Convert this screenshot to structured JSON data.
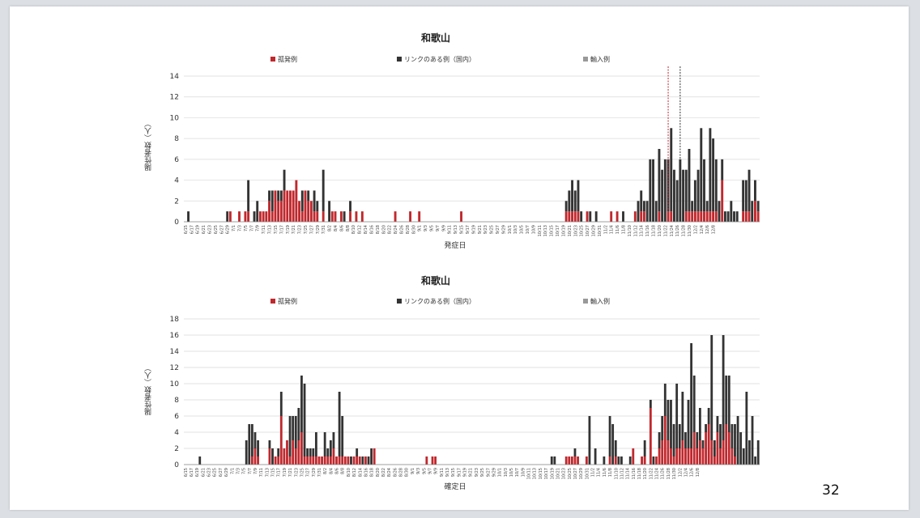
{
  "page_number": "32",
  "colors": {
    "sporadic": "#c0282d",
    "linked": "#333333",
    "imported": "#999999"
  },
  "chart_data": [
    {
      "type": "bar",
      "stacked": true,
      "title": "和歌山",
      "xlabel": "発症日",
      "ylabel": "陽性者数（人）",
      "ylim": [
        0,
        14
      ],
      "yticks": [
        0,
        2,
        4,
        6,
        8,
        10,
        12,
        14
      ],
      "grid": true,
      "legend_position": "top",
      "legend": [
        "孤発例",
        "リンクのある例（国内）",
        "輸入例"
      ],
      "x_start": "6/15",
      "x_end": "12/9",
      "x_tick_labels": [
        "6/15",
        "6/17",
        "6/19",
        "6/21",
        "6/23",
        "6/25",
        "6/27",
        "6/29",
        "7/1",
        "7/3",
        "7/5",
        "7/7",
        "7/9",
        "7/11",
        "7/13",
        "7/15",
        "7/17",
        "7/19",
        "7/21",
        "7/23",
        "7/25",
        "7/27",
        "7/29",
        "7/31",
        "8/2",
        "8/4",
        "8/6",
        "8/8",
        "8/10",
        "8/12",
        "8/14",
        "8/16",
        "8/18",
        "8/20",
        "8/22",
        "8/24",
        "8/26",
        "8/28",
        "8/30",
        "9/1",
        "9/3",
        "9/5",
        "9/7",
        "9/9",
        "9/11",
        "9/13",
        "9/15",
        "9/17",
        "9/19",
        "9/21",
        "9/23",
        "9/25",
        "9/27",
        "9/29",
        "10/1",
        "10/3",
        "10/5",
        "10/7",
        "10/9",
        "10/11",
        "10/13",
        "10/15",
        "10/17",
        "10/19",
        "10/21",
        "10/23",
        "10/25",
        "10/27",
        "10/29",
        "10/31",
        "11/2",
        "11/4",
        "11/6",
        "11/8",
        "11/10",
        "11/12",
        "11/14",
        "11/16",
        "11/18",
        "11/20",
        "11/22",
        "11/24",
        "11/26",
        "11/28",
        "11/30",
        "12/2",
        "12/4",
        "12/6",
        "12/8"
      ],
      "x_tick_step": 2,
      "reference_lines": [
        {
          "date": "11/23",
          "color": "#c0282d"
        },
        {
          "date": "11/27",
          "color": "#333333"
        }
      ],
      "series": [
        {
          "name": "孤発例",
          "values": [
            0,
            0,
            0,
            0,
            0,
            0,
            0,
            0,
            0,
            0,
            0,
            0,
            0,
            0,
            0,
            1,
            0,
            0,
            1,
            0,
            1,
            1,
            0,
            0,
            0,
            1,
            1,
            1,
            2,
            1,
            3,
            2,
            2,
            3,
            3,
            3,
            3,
            4,
            2,
            1,
            3,
            2,
            2,
            1,
            1,
            0,
            1,
            0,
            0,
            1,
            1,
            0,
            1,
            0,
            0,
            1,
            0,
            1,
            0,
            1,
            0,
            0,
            0,
            0,
            0,
            0,
            0,
            0,
            0,
            0,
            1,
            0,
            0,
            0,
            0,
            1,
            0,
            0,
            1,
            0,
            0,
            0,
            0,
            0,
            0,
            0,
            0,
            0,
            0,
            0,
            0,
            0,
            1,
            0,
            0,
            0,
            0,
            0,
            0,
            0,
            0,
            0,
            0,
            0,
            0,
            0,
            0,
            0,
            0,
            0,
            0,
            0,
            0,
            0,
            0,
            0,
            0,
            0,
            0,
            0,
            0,
            0,
            0,
            0,
            0,
            0,
            0,
            1,
            1,
            1,
            1,
            1,
            0,
            0,
            1,
            0,
            0,
            0,
            0,
            0,
            0,
            0,
            1,
            0,
            1,
            0,
            0,
            0,
            0,
            0,
            1,
            0,
            1,
            1,
            0,
            0,
            0,
            0,
            1,
            0,
            0,
            1,
            1,
            0,
            0,
            0,
            0,
            1,
            1,
            1,
            1,
            1,
            1,
            1,
            1,
            1,
            1,
            1,
            0,
            4,
            0,
            0,
            0,
            0,
            0,
            0,
            1,
            1,
            1,
            0,
            2,
            1
          ]
        },
        {
          "name": "リンクのある例（国内）",
          "values": [
            0,
            1,
            0,
            0,
            0,
            0,
            0,
            0,
            0,
            0,
            0,
            0,
            0,
            0,
            1,
            0,
            0,
            0,
            0,
            0,
            0,
            3,
            0,
            1,
            2,
            0,
            0,
            0,
            1,
            2,
            0,
            1,
            1,
            2,
            0,
            0,
            0,
            0,
            0,
            2,
            0,
            1,
            0,
            2,
            1,
            0,
            4,
            0,
            2,
            0,
            0,
            0,
            0,
            1,
            0,
            1,
            0,
            0,
            0,
            0,
            0,
            0,
            0,
            0,
            0,
            0,
            0,
            0,
            0,
            0,
            0,
            0,
            0,
            0,
            0,
            0,
            0,
            0,
            0,
            0,
            0,
            0,
            0,
            0,
            0,
            0,
            0,
            0,
            0,
            0,
            0,
            0,
            0,
            0,
            0,
            0,
            0,
            0,
            0,
            0,
            0,
            0,
            0,
            0,
            0,
            0,
            0,
            0,
            0,
            0,
            0,
            0,
            0,
            0,
            0,
            0,
            0,
            0,
            0,
            0,
            0,
            0,
            0,
            0,
            0,
            0,
            0,
            1,
            2,
            3,
            2,
            3,
            1,
            0,
            0,
            1,
            0,
            1,
            0,
            0,
            0,
            0,
            0,
            0,
            0,
            0,
            1,
            0,
            0,
            0,
            0,
            2,
            2,
            1,
            2,
            6,
            6,
            2,
            6,
            5,
            6,
            5,
            8,
            5,
            4,
            6,
            5,
            4,
            6,
            1,
            3,
            4,
            8,
            5,
            1,
            8,
            7,
            5,
            2,
            2,
            1,
            1,
            2,
            1,
            1,
            0,
            3,
            3,
            4,
            2,
            2,
            1
          ]
        },
        {
          "name": "輸入例",
          "values": []
        }
      ]
    },
    {
      "type": "bar",
      "stacked": true,
      "title": "和歌山",
      "xlabel": "確定日",
      "ylabel": "陽性者数（人）",
      "ylim": [
        0,
        18
      ],
      "yticks": [
        0,
        2,
        4,
        6,
        8,
        10,
        12,
        14,
        16,
        18
      ],
      "grid": true,
      "legend_position": "top",
      "legend": [
        "孤発例",
        "リンクのある例（国内）",
        "輸入例"
      ],
      "x_start": "6/15",
      "x_end": "12/9",
      "x_tick_labels": [
        "6/15",
        "6/17",
        "6/19",
        "6/21",
        "6/23",
        "6/25",
        "6/27",
        "6/29",
        "7/1",
        "7/3",
        "7/5",
        "7/7",
        "7/9",
        "7/11",
        "7/13",
        "7/15",
        "7/17",
        "7/19",
        "7/21",
        "7/23",
        "7/25",
        "7/27",
        "7/29",
        "7/31",
        "8/2",
        "8/4",
        "8/6",
        "8/8",
        "8/10",
        "8/12",
        "8/14",
        "8/16",
        "8/18",
        "8/20",
        "8/22",
        "8/24",
        "8/26",
        "8/28",
        "8/30",
        "9/1",
        "9/3",
        "9/5",
        "9/7",
        "9/9",
        "9/11",
        "9/13",
        "9/15",
        "9/17",
        "9/19",
        "9/21",
        "9/23",
        "9/25",
        "9/27",
        "9/29",
        "10/1",
        "10/3",
        "10/5",
        "10/7",
        "10/9",
        "10/11",
        "10/13",
        "10/15",
        "10/17",
        "10/19",
        "10/21",
        "10/23",
        "10/25",
        "10/27",
        "10/29",
        "10/31",
        "11/2",
        "11/4",
        "11/6",
        "11/8",
        "11/10",
        "11/12",
        "11/14",
        "11/16",
        "11/18",
        "11/20",
        "11/22",
        "11/24",
        "11/26",
        "11/28",
        "11/30",
        "12/2",
        "12/4",
        "12/6",
        "12/8"
      ],
      "x_tick_step": 2,
      "series": [
        {
          "name": "孤発例",
          "values": [
            0,
            0,
            0,
            0,
            0,
            0,
            0,
            0,
            0,
            0,
            0,
            0,
            0,
            0,
            0,
            0,
            0,
            0,
            0,
            0,
            0,
            0,
            0,
            1,
            2,
            1,
            0,
            0,
            0,
            2,
            0,
            1,
            1,
            6,
            2,
            3,
            1,
            3,
            2,
            3,
            4,
            1,
            1,
            1,
            1,
            1,
            1,
            1,
            1,
            1,
            1,
            2,
            1,
            1,
            1,
            1,
            1,
            0,
            1,
            1,
            1,
            0,
            1,
            0,
            0,
            2,
            0,
            0,
            0,
            0,
            0,
            0,
            0,
            0,
            0,
            0,
            0,
            0,
            0,
            0,
            0,
            0,
            0,
            1,
            0,
            1,
            1,
            0,
            0,
            0,
            0,
            0,
            0,
            0,
            0,
            0,
            0,
            0,
            0,
            0,
            0,
            0,
            0,
            0,
            0,
            0,
            0,
            0,
            0,
            0,
            0,
            0,
            0,
            0,
            0,
            0,
            0,
            0,
            0,
            0,
            0,
            0,
            0,
            0,
            0,
            0,
            0,
            0,
            0,
            0,
            0,
            1,
            1,
            1,
            1,
            1,
            0,
            0,
            1,
            0,
            0,
            0,
            0,
            0,
            0,
            0,
            1,
            0,
            1,
            0,
            0,
            0,
            0,
            0,
            2,
            0,
            0,
            1,
            1,
            0,
            7,
            0,
            1,
            2,
            3,
            6,
            3,
            2,
            1,
            2,
            2,
            3,
            2,
            2,
            2,
            4,
            2,
            3,
            2,
            4,
            5,
            3,
            1,
            4,
            2,
            3,
            5,
            4,
            2,
            1
          ]
        },
        {
          "name": "リンクのある例（国内）",
          "values": [
            0,
            0,
            0,
            0,
            0,
            1,
            0,
            0,
            0,
            0,
            0,
            0,
            0,
            0,
            0,
            0,
            0,
            0,
            0,
            0,
            0,
            3,
            5,
            4,
            2,
            2,
            0,
            0,
            0,
            1,
            2,
            0,
            1,
            3,
            0,
            0,
            5,
            3,
            4,
            4,
            7,
            9,
            1,
            1,
            1,
            3,
            0,
            0,
            3,
            1,
            2,
            2,
            0,
            8,
            5,
            0,
            0,
            1,
            0,
            1,
            0,
            1,
            0,
            1,
            2,
            0,
            0,
            0,
            0,
            0,
            0,
            0,
            0,
            0,
            0,
            0,
            0,
            0,
            0,
            0,
            0,
            0,
            0,
            0,
            0,
            0,
            0,
            0,
            0,
            0,
            0,
            0,
            0,
            0,
            0,
            0,
            0,
            0,
            0,
            0,
            0,
            0,
            0,
            0,
            0,
            0,
            0,
            0,
            0,
            0,
            0,
            0,
            0,
            0,
            0,
            0,
            0,
            0,
            0,
            0,
            0,
            0,
            0,
            0,
            0,
            0,
            1,
            1,
            0,
            0,
            0,
            0,
            0,
            0,
            1,
            0,
            0,
            0,
            0,
            6,
            0,
            2,
            0,
            0,
            1,
            0,
            5,
            5,
            2,
            1,
            1,
            0,
            0,
            1,
            0,
            0,
            0,
            0,
            2,
            0,
            1,
            1,
            0,
            2,
            3,
            4,
            5,
            6,
            4,
            8,
            3,
            6,
            2,
            6,
            13,
            7,
            2,
            4,
            1,
            1,
            2,
            13,
            2,
            2,
            3,
            13,
            6,
            7,
            3,
            4,
            6,
            4,
            2,
            9,
            3,
            6,
            1,
            3
          ]
        },
        {
          "name": "輸入例",
          "values": []
        }
      ]
    }
  ]
}
